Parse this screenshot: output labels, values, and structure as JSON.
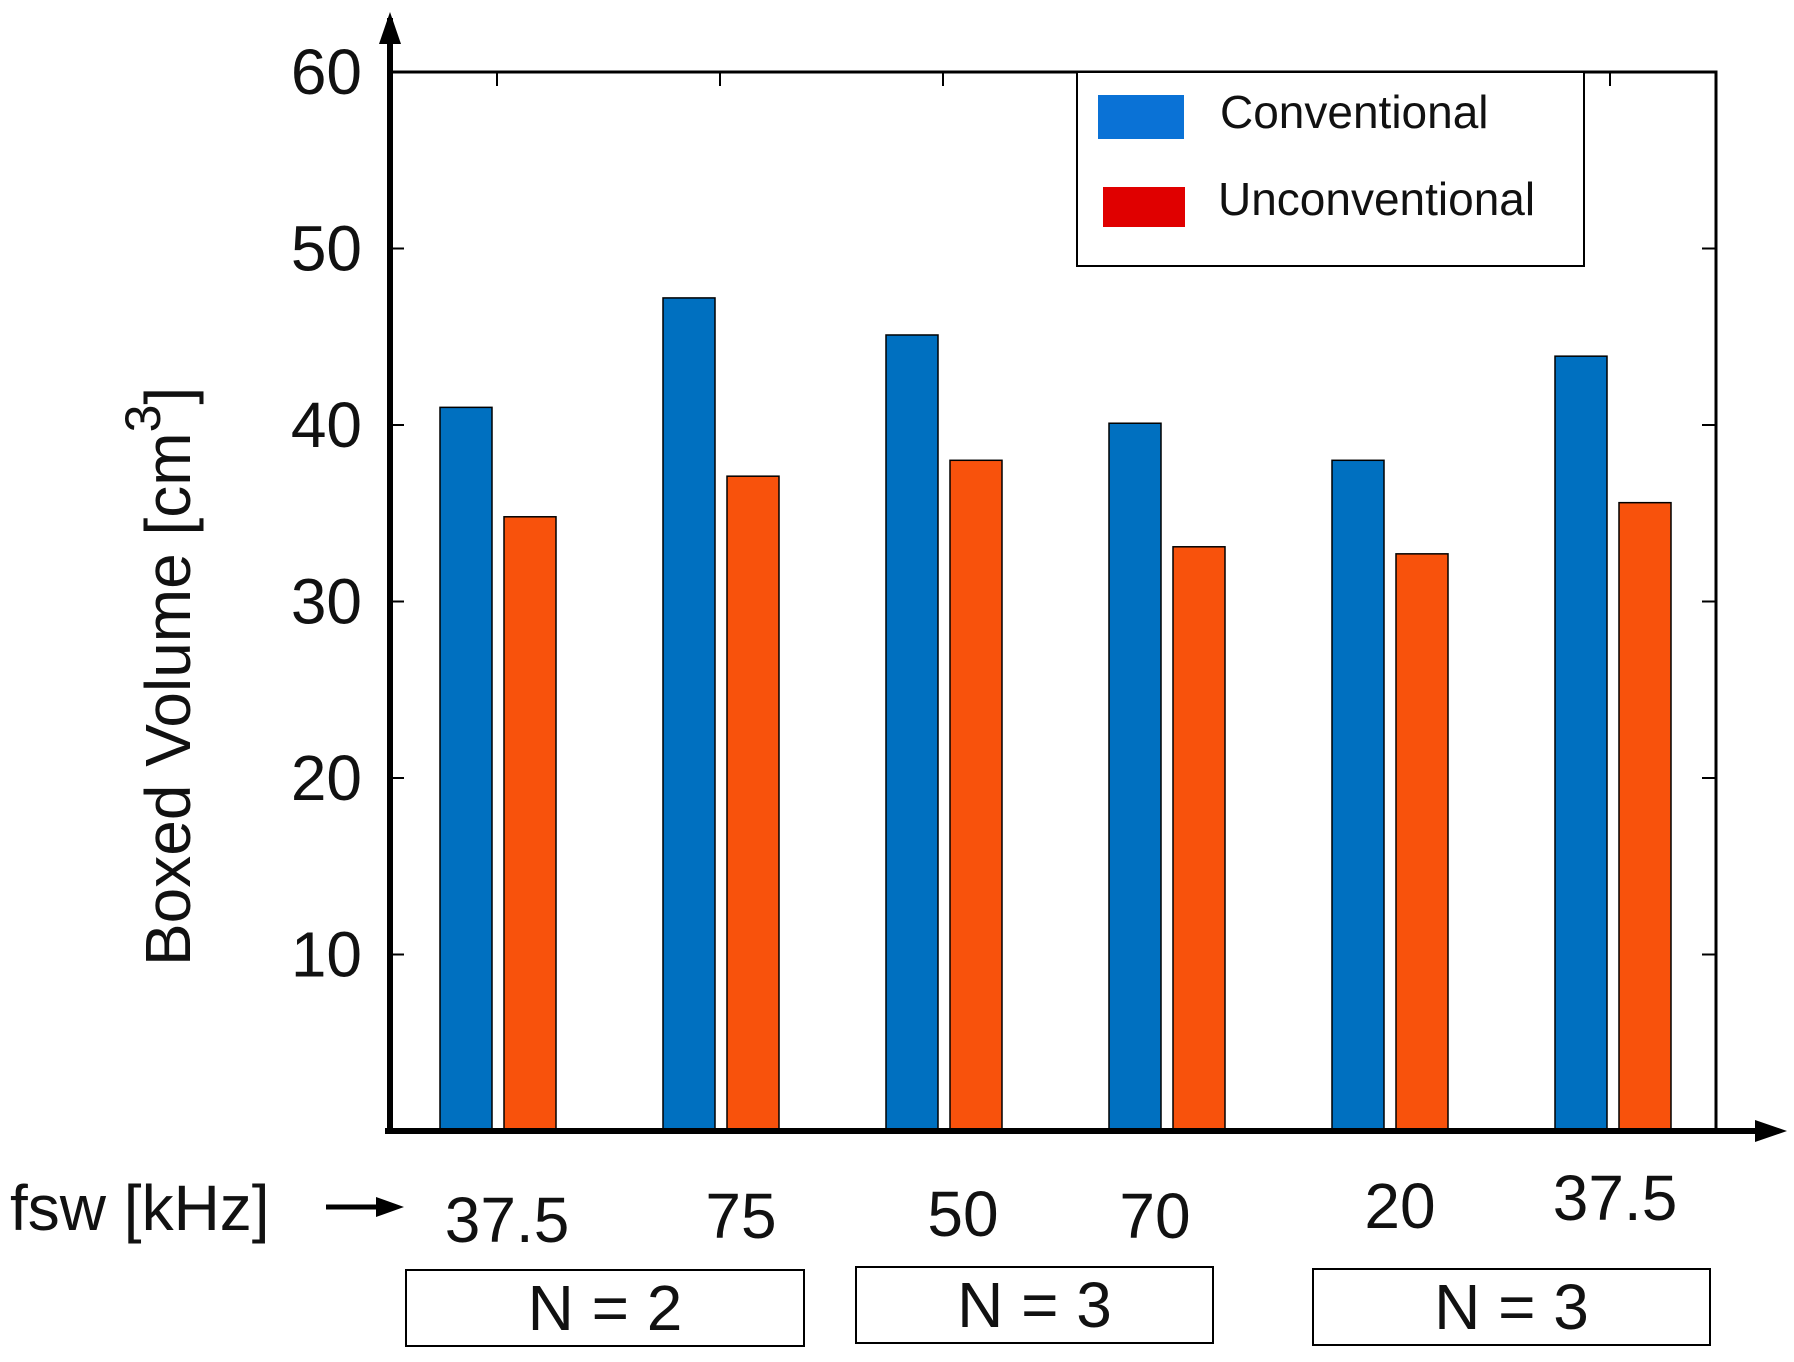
{
  "chart_data": {
    "type": "bar",
    "ylabel": "Boxed Volume [cm",
    "ylabel_superscript": "3",
    "ylabel_close": "]",
    "xlabel": "fsw [kHz]",
    "ylim": [
      0,
      60
    ],
    "yticks": [
      10,
      20,
      30,
      40,
      50,
      60
    ],
    "categories": [
      "37.5",
      "75",
      "50",
      "70",
      "20",
      "37.5"
    ],
    "series": [
      {
        "name": "Conventional",
        "color": "#0070c0",
        "values": [
          41,
          47.2,
          45.1,
          40.1,
          38,
          43.9
        ]
      },
      {
        "name": "Unconventional",
        "color": "#f8520c",
        "values": [
          34.8,
          37.1,
          38,
          33.1,
          32.7,
          35.6
        ]
      }
    ],
    "legend_colors": [
      "#0a72d6",
      "#e00000"
    ],
    "groups": [
      {
        "label": "N = 2",
        "span": [
          0,
          1
        ]
      },
      {
        "label": "N = 3",
        "span": [
          2,
          3
        ]
      },
      {
        "label": "N = 3",
        "span": [
          4,
          5
        ]
      }
    ],
    "legend_position": "top-right",
    "grid": false
  }
}
